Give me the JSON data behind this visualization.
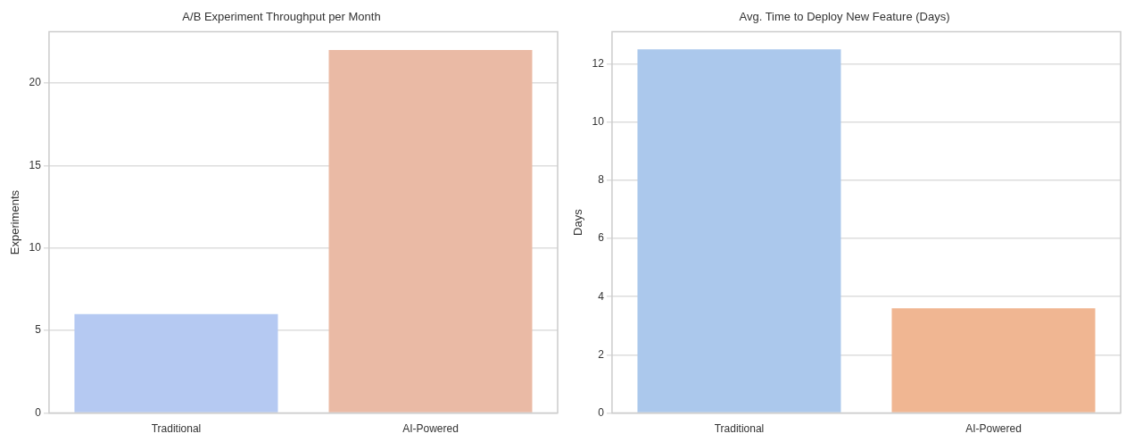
{
  "chart_data": [
    {
      "type": "bar",
      "title": "A/B Experiment Throughput per Month",
      "ylabel": "Experiments",
      "categories": [
        "Traditional",
        "AI-Powered"
      ],
      "values": [
        6,
        22
      ],
      "colors": [
        "#b5c9f2",
        "#eabaa5"
      ],
      "ylim": [
        0,
        23.1
      ],
      "yticks": [
        0,
        5,
        10,
        15,
        20
      ],
      "grid": "y",
      "legend": false
    },
    {
      "type": "bar",
      "title": "Avg. Time to Deploy New Feature (Days)",
      "ylabel": "Days",
      "categories": [
        "Traditional",
        "AI-Powered"
      ],
      "values": [
        12.5,
        3.6
      ],
      "colors": [
        "#abc8ec",
        "#f0b692"
      ],
      "ylim": [
        0,
        13.1
      ],
      "yticks": [
        0,
        2,
        4,
        6,
        8,
        10,
        12
      ],
      "grid": "y",
      "legend": false
    }
  ]
}
